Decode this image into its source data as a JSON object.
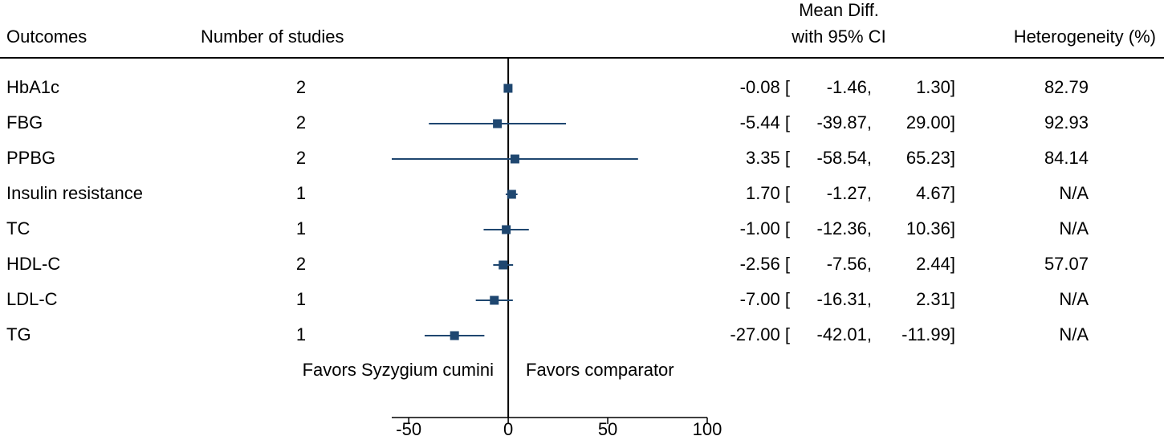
{
  "chart_data": {
    "type": "forest",
    "columns": [
      "Outcomes",
      "Number of studies",
      "Mean Diff.",
      "with 95% CI",
      "Heterogeneity (%)"
    ],
    "categories": [
      "HbA1c",
      "FBG",
      "PPBG",
      "Insulin resistance",
      "TC",
      "HDL-C",
      "LDL-C",
      "TG"
    ],
    "studies": [
      2,
      2,
      2,
      1,
      1,
      2,
      1,
      1
    ],
    "values": [
      -0.08,
      -5.44,
      3.35,
      1.7,
      -1,
      -2.56,
      -7,
      -27
    ],
    "value_labels": [
      "-0.08 [",
      "-5.44 [",
      "3.35 [",
      "1.70 [",
      "-1.00 [",
      "-2.56 [",
      "-7.00 [",
      "-27.00 ["
    ],
    "lower": [
      -1.46,
      -39.87,
      -58.54,
      -1.27,
      -12.36,
      -7.56,
      -16.31,
      -42.01
    ],
    "lower_labels": [
      "-1.46,",
      "-39.87,",
      "-58.54,",
      "-1.27,",
      "-12.36,",
      "-7.56,",
      "-16.31,",
      "-42.01,"
    ],
    "upper": [
      1.3,
      29,
      65.23,
      4.67,
      10.36,
      2.44,
      2.31,
      -11.99
    ],
    "upper_labels": [
      "1.30]",
      "29.00]",
      "65.23]",
      "4.67]",
      "10.36]",
      "2.44]",
      "2.31]",
      "-11.99]"
    ],
    "heterogeneity": [
      "82.79",
      "92.93",
      "84.14",
      "N/A",
      "N/A",
      "57.07",
      "N/A",
      "N/A"
    ],
    "annotations": [
      "Favors Syzygium cumini",
      "Favors comparator"
    ],
    "reference": 0,
    "xlim": [
      -58.54,
      100
    ],
    "xticks": [
      -50,
      0,
      50,
      100
    ],
    "color": "#1f4770"
  }
}
